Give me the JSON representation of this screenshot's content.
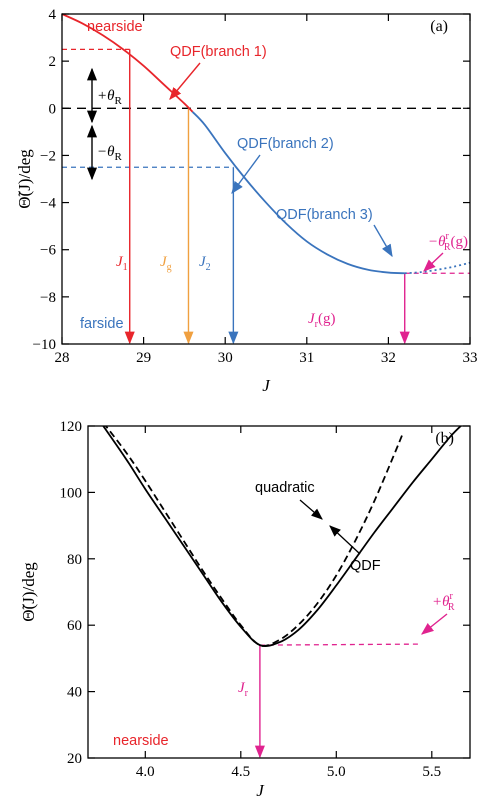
{
  "colors": {
    "red": "#e8252b",
    "blue": "#3a74bd",
    "orange": "#f0a040",
    "magenta": "#e0238f",
    "black": "#000000"
  },
  "chart_data": [
    {
      "type": "line",
      "panel_label": "(a)",
      "xlabel": "J",
      "ylabel": "Θ̃(J)/deg",
      "xlim": [
        28,
        33
      ],
      "ylim": [
        -10,
        4
      ],
      "xticks": [
        "28",
        "29",
        "30",
        "31",
        "32",
        "33"
      ],
      "yticks": [
        "−10",
        "−8",
        "−6",
        "−4",
        "−2",
        "0",
        "2",
        "4"
      ],
      "series": [
        {
          "name": "QDF(branch 1)",
          "color": "#e8252b",
          "x": [
            28.0,
            28.25,
            28.5,
            28.75,
            29.0,
            29.25,
            29.5,
            29.6
          ],
          "y": [
            4.0,
            3.6,
            3.1,
            2.5,
            1.8,
            1.0,
            0.2,
            -0.15
          ]
        },
        {
          "name": "QDF(branch 2)",
          "color": "#3a74bd",
          "x": [
            29.6,
            29.75,
            30.0,
            30.25,
            30.5,
            30.75,
            31.0,
            31.25,
            31.5,
            31.75,
            32.0,
            32.2
          ],
          "y": [
            -0.15,
            -0.7,
            -1.9,
            -3.0,
            -4.0,
            -4.9,
            -5.65,
            -6.2,
            -6.6,
            -6.85,
            -6.97,
            -7.0
          ]
        },
        {
          "name": "QDF(branch 3)",
          "color": "#3a74bd",
          "style": "dotted",
          "x": [
            32.2,
            32.4,
            32.6,
            32.8,
            33.0
          ],
          "y": [
            -7.0,
            -6.95,
            -6.85,
            -6.72,
            -6.55
          ]
        }
      ],
      "annotations": {
        "nearside": "nearside",
        "farside": "farside",
        "branch1": "QDF(branch 1)",
        "branch2": "QDF(branch 2)",
        "branch3": "QDF(branch 3)",
        "plus_theta": "+θ",
        "minus_theta": "−θ",
        "theta_sub": "R",
        "J1": "J",
        "J1_sub": "1",
        "Jg": "J",
        "Jg_sub": "g",
        "J2": "J",
        "J2_sub": "2",
        "Jr": "J",
        "Jr_sub": "r",
        "Jr_suffix": "(g)",
        "theta_r": "−θ",
        "theta_r_sup": "r",
        "theta_r_sub": "R",
        "theta_r_suffix": "(g)"
      },
      "levels": {
        "theta_R": 2.5,
        "theta_R_r_g": -7.0,
        "J1": 28.83,
        "Jg": 29.55,
        "J2": 30.1,
        "Jr_g": 32.2
      }
    },
    {
      "type": "line",
      "panel_label": "(b)",
      "xlabel": "J",
      "ylabel": "Θ̃(J)/deg",
      "xlim": [
        3.7,
        5.7
      ],
      "ylim": [
        20,
        120
      ],
      "xticks": [
        "4.0",
        "4.5",
        "5.0",
        "5.5"
      ],
      "yticks": [
        "20",
        "40",
        "60",
        "80",
        "100",
        "120"
      ],
      "series": [
        {
          "name": "QDF",
          "color": "#000000",
          "style": "solid",
          "x": [
            3.78,
            3.9,
            4.0,
            4.1,
            4.2,
            4.3,
            4.4,
            4.5,
            4.6,
            4.7,
            4.8,
            4.9,
            5.0,
            5.1,
            5.2,
            5.3,
            5.4,
            5.5,
            5.6,
            5.67
          ],
          "y": [
            120,
            110,
            101,
            92.5,
            84,
            75.5,
            67,
            59.5,
            54,
            54.8,
            58.5,
            64.5,
            72,
            80,
            88,
            95.5,
            103,
            110,
            117,
            121
          ]
        },
        {
          "name": "quadratic",
          "color": "#000000",
          "style": "dashed",
          "x": [
            3.78,
            3.9,
            4.0,
            4.1,
            4.2,
            4.3,
            4.4,
            4.5,
            4.6,
            4.7,
            4.8,
            4.9,
            5.0,
            5.1,
            5.2,
            5.3,
            5.35
          ],
          "y": [
            121,
            112,
            103.5,
            94.5,
            85.5,
            76.5,
            68,
            60,
            54,
            55.5,
            60,
            66.5,
            75,
            85.5,
            97.5,
            111,
            118
          ]
        }
      ],
      "annotations": {
        "quadratic": "quadratic",
        "qdf": "QDF",
        "nearside": "nearside",
        "Jr": "J",
        "Jr_sub": "r",
        "theta_r": "+θ",
        "theta_r_sup": "r",
        "theta_r_sub": "R"
      },
      "levels": {
        "Jr": 4.6,
        "theta_R_r": 54
      }
    }
  ]
}
